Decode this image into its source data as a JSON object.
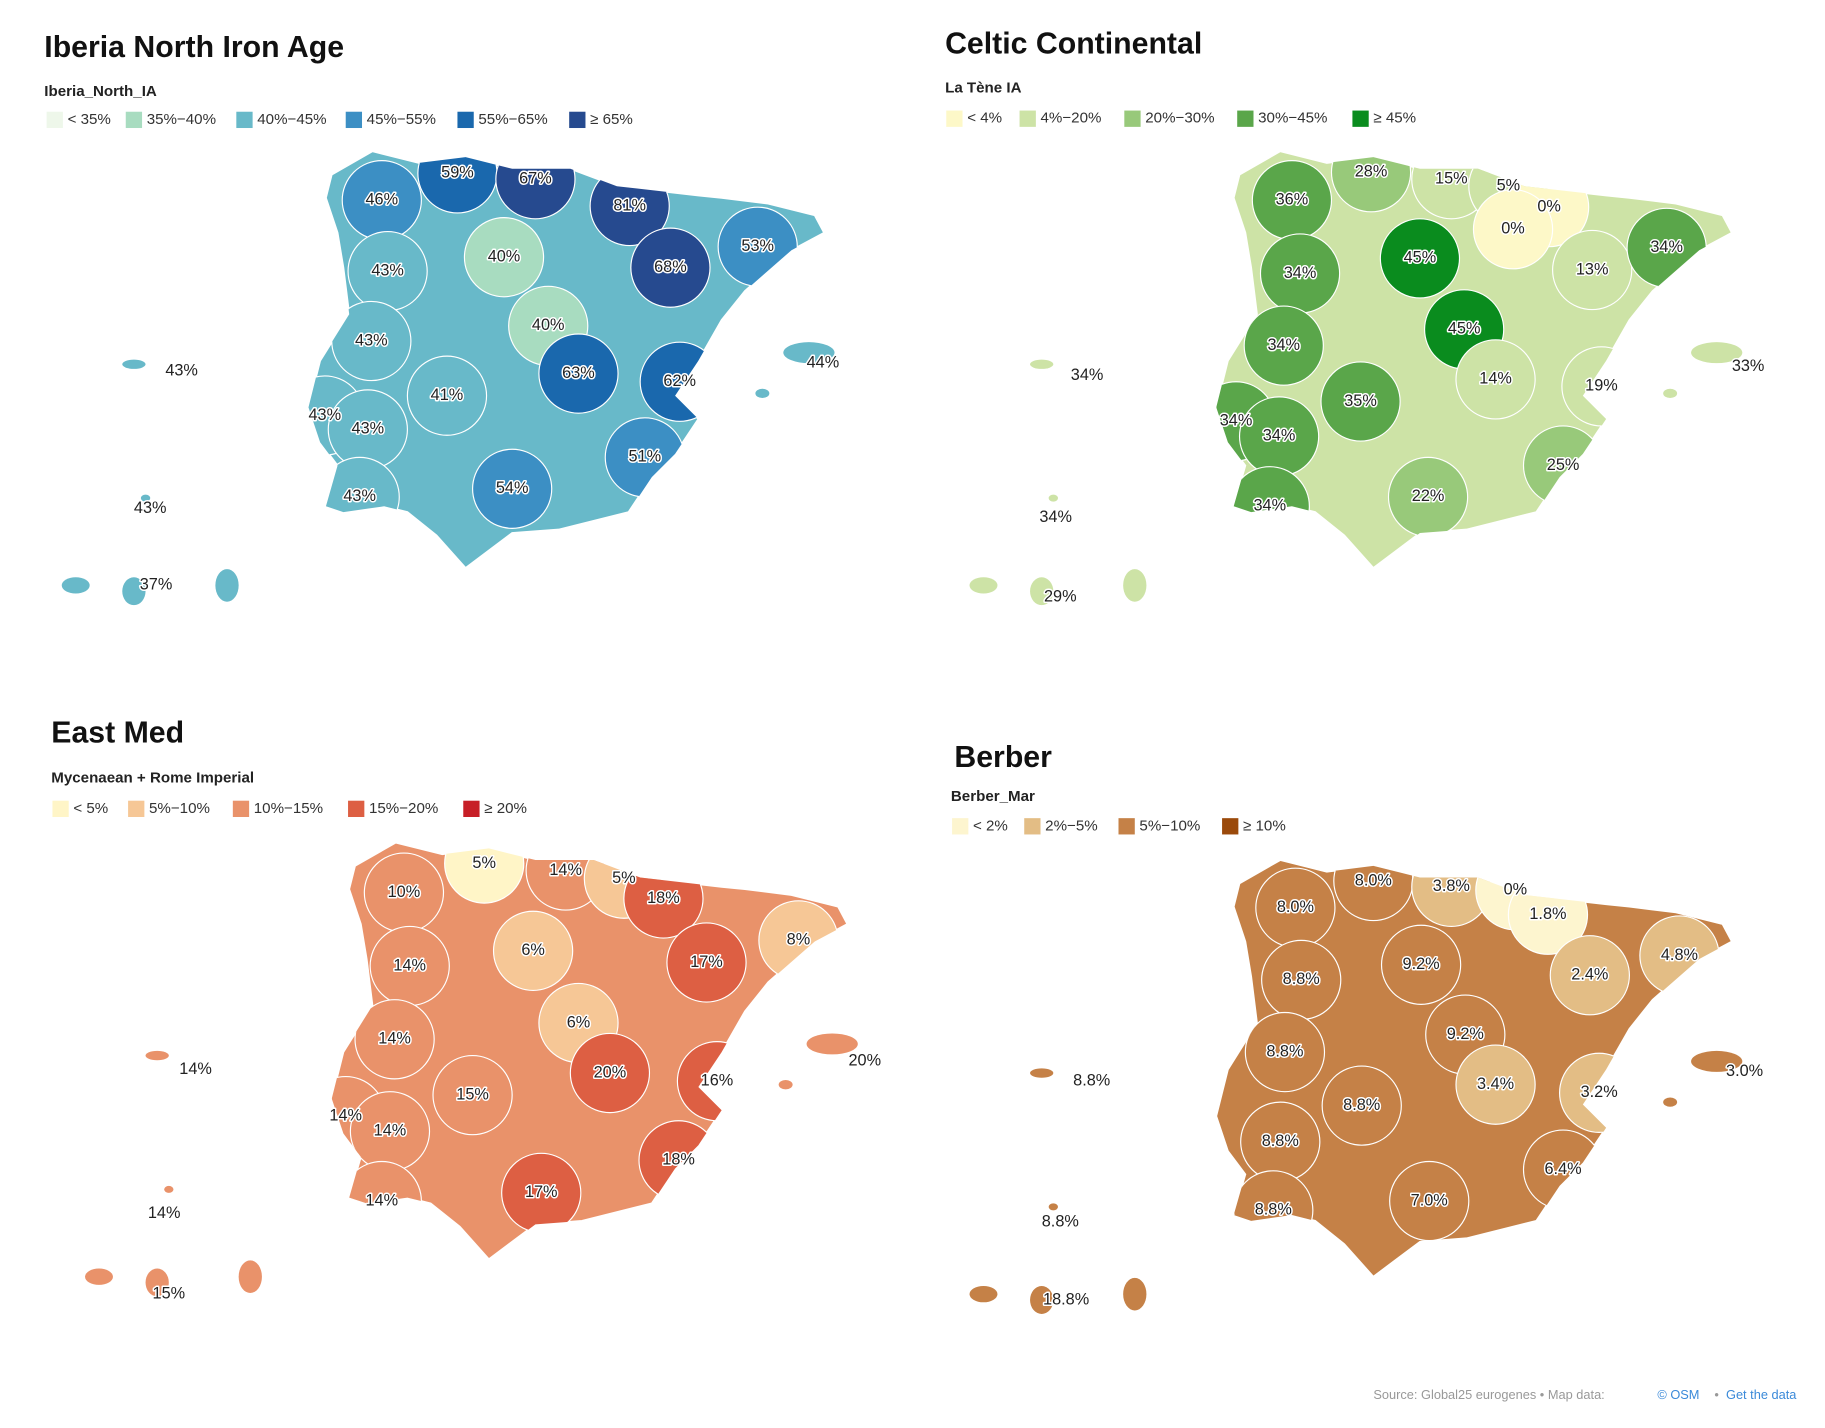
{
  "maps": [
    {
      "title": "Iberia North Iron Age",
      "legend_title": "Iberia_North_IA",
      "base_color": "#68b9c9",
      "legend": [
        {
          "label": "< 35%",
          "color": "#eef7ea"
        },
        {
          "label": "35%−40%",
          "color": "#a8dcc0"
        },
        {
          "label": "40%−45%",
          "color": "#68b9c9"
        },
        {
          "label": "45%−55%",
          "color": "#3c8fc4"
        },
        {
          "label": "55%−65%",
          "color": "#1a68ad"
        },
        {
          "label": "≥ 65%",
          "color": "#264a8f"
        }
      ],
      "labels": [
        {
          "text": "46%",
          "color": "#3c8fc4"
        },
        {
          "text": "59%",
          "color": "#1a68ad"
        },
        {
          "text": "67%",
          "color": "#264a8f"
        },
        {
          "text": "81%",
          "color": "#264a8f"
        },
        {
          "text": "40%",
          "color": "#a8dcc0"
        },
        {
          "text": "43%",
          "color": "#68b9c9"
        },
        {
          "text": "68%",
          "color": "#264a8f"
        },
        {
          "text": "53%",
          "color": "#3c8fc4"
        },
        {
          "text": "40%",
          "color": "#a8dcc0"
        },
        {
          "text": "43%",
          "color": "#68b9c9"
        },
        {
          "text": "63%",
          "color": "#1a68ad"
        },
        {
          "text": "62%",
          "color": "#1a68ad"
        },
        {
          "text": "43%",
          "color": "#68b9c9"
        },
        {
          "text": "41%",
          "color": "#68b9c9"
        },
        {
          "text": "44%",
          "color": "#68b9c9"
        },
        {
          "text": "43%",
          "color": "#68b9c9"
        },
        {
          "text": "43%",
          "color": "#68b9c9"
        },
        {
          "text": "51%",
          "color": "#3c8fc4"
        },
        {
          "text": "54%",
          "color": "#3c8fc4"
        },
        {
          "text": "43%",
          "color": "#68b9c9"
        },
        {
          "text": "43%",
          "color": "#68b9c9"
        },
        {
          "text": "37%",
          "color": "#a8dcc0"
        }
      ]
    },
    {
      "title": "Celtic Continental",
      "legend_title": "La Tène IA",
      "base_color": "#cde3a6",
      "legend": [
        {
          "label": "< 4%",
          "color": "#fdf8c8"
        },
        {
          "label": "4%−20%",
          "color": "#cde3a6"
        },
        {
          "label": "20%−30%",
          "color": "#98c97a"
        },
        {
          "label": "30%−45%",
          "color": "#5aa64a"
        },
        {
          "label": "≥ 45%",
          "color": "#0a8c1e"
        }
      ],
      "labels": [
        {
          "text": "36%",
          "color": "#5aa64a"
        },
        {
          "text": "28%",
          "color": "#98c97a"
        },
        {
          "text": "15%",
          "color": "#cde3a6"
        },
        {
          "text": "5%",
          "color": "#cde3a6"
        },
        {
          "text": "0%",
          "color": "#fdf8c8"
        },
        {
          "text": "0%",
          "color": "#fdf8c8"
        },
        {
          "text": "45%",
          "color": "#0a8c1e"
        },
        {
          "text": "34%",
          "color": "#5aa64a"
        },
        {
          "text": "13%",
          "color": "#cde3a6"
        },
        {
          "text": "34%",
          "color": "#5aa64a"
        },
        {
          "text": "34%",
          "color": "#5aa64a"
        },
        {
          "text": "45%",
          "color": "#0a8c1e"
        },
        {
          "text": "34%",
          "color": "#5aa64a"
        },
        {
          "text": "14%",
          "color": "#cde3a6"
        },
        {
          "text": "33%",
          "color": "#5aa64a"
        },
        {
          "text": "19%",
          "color": "#cde3a6"
        },
        {
          "text": "35%",
          "color": "#5aa64a"
        },
        {
          "text": "34%",
          "color": "#5aa64a"
        },
        {
          "text": "34%",
          "color": "#5aa64a"
        },
        {
          "text": "25%",
          "color": "#98c97a"
        },
        {
          "text": "22%",
          "color": "#98c97a"
        },
        {
          "text": "34%",
          "color": "#5aa64a"
        },
        {
          "text": "34%",
          "color": "#5aa64a"
        },
        {
          "text": "29%",
          "color": "#98c97a"
        }
      ]
    },
    {
      "title": "East Med",
      "legend_title": "Mycenaean + Rome Imperial",
      "base_color": "#e9926a",
      "legend": [
        {
          "label": "< 5%",
          "color": "#fff5c7"
        },
        {
          "label": "5%−10%",
          "color": "#f6c796"
        },
        {
          "label": "10%−15%",
          "color": "#e9926a"
        },
        {
          "label": "15%−20%",
          "color": "#dd5f43"
        },
        {
          "label": "≥ 20%",
          "color": "#c71f27"
        }
      ],
      "labels": [
        {
          "text": "5%",
          "color": "#fff5c7"
        },
        {
          "text": "14%",
          "color": "#e9926a"
        },
        {
          "text": "5%",
          "color": "#f6c796"
        },
        {
          "text": "10%",
          "color": "#e9926a"
        },
        {
          "text": "18%",
          "color": "#dd5f43"
        },
        {
          "text": "6%",
          "color": "#f6c796"
        },
        {
          "text": "17%",
          "color": "#dd5f43"
        },
        {
          "text": "8%",
          "color": "#f6c796"
        },
        {
          "text": "14%",
          "color": "#e9926a"
        },
        {
          "text": "6%",
          "color": "#f6c796"
        },
        {
          "text": "14%",
          "color": "#e9926a"
        },
        {
          "text": "14%",
          "color": "#e9926a"
        },
        {
          "text": "20%",
          "color": "#c71f27"
        },
        {
          "text": "20%",
          "color": "#dd5f43"
        },
        {
          "text": "16%",
          "color": "#dd5f43"
        },
        {
          "text": "15%",
          "color": "#e9926a"
        },
        {
          "text": "14%",
          "color": "#e9926a"
        },
        {
          "text": "14%",
          "color": "#e9926a"
        },
        {
          "text": "18%",
          "color": "#dd5f43"
        },
        {
          "text": "17%",
          "color": "#dd5f43"
        },
        {
          "text": "14%",
          "color": "#e9926a"
        },
        {
          "text": "14%",
          "color": "#e9926a"
        },
        {
          "text": "15%",
          "color": "#e9926a"
        }
      ]
    },
    {
      "title": "Berber",
      "legend_title": "Berber_Mar",
      "base_color": "#c58147",
      "legend": [
        {
          "label": "< 2%",
          "color": "#fdf5cf"
        },
        {
          "label": "2%−5%",
          "color": "#e3bd85"
        },
        {
          "label": "5%−10%",
          "color": "#c58147"
        },
        {
          "label": "≥ 10%",
          "color": "#9b4a0b"
        }
      ],
      "labels": [
        {
          "text": "8.0%",
          "color": "#c58147"
        },
        {
          "text": "3.8%",
          "color": "#e3bd85"
        },
        {
          "text": "0%",
          "color": "#fdf5cf"
        },
        {
          "text": "8.0%",
          "color": "#c58147"
        },
        {
          "text": "1.8%",
          "color": "#fdf5cf"
        },
        {
          "text": "4.8%",
          "color": "#e3bd85"
        },
        {
          "text": "9.2%",
          "color": "#c58147"
        },
        {
          "text": "8.8%",
          "color": "#c58147"
        },
        {
          "text": "2.4%",
          "color": "#e3bd85"
        },
        {
          "text": "9.2%",
          "color": "#c58147"
        },
        {
          "text": "8.8%",
          "color": "#c58147"
        },
        {
          "text": "8.8%",
          "color": "#c58147"
        },
        {
          "text": "3.0%",
          "color": "#e3bd85"
        },
        {
          "text": "3.4%",
          "color": "#e3bd85"
        },
        {
          "text": "3.2%",
          "color": "#e3bd85"
        },
        {
          "text": "8.8%",
          "color": "#c58147"
        },
        {
          "text": "8.8%",
          "color": "#c58147"
        },
        {
          "text": "6.4%",
          "color": "#c58147"
        },
        {
          "text": "7.0%",
          "color": "#c58147"
        },
        {
          "text": "8.8%",
          "color": "#c58147"
        },
        {
          "text": "8.8%",
          "color": "#c58147"
        },
        {
          "text": "18.8%",
          "color": "#9b4a0b"
        }
      ]
    }
  ],
  "source": {
    "text": "Source: Global25 eurogenes",
    "map_data": "• Map data:",
    "osm": "© OSM",
    "sep": "•",
    "link": "Get the data"
  }
}
